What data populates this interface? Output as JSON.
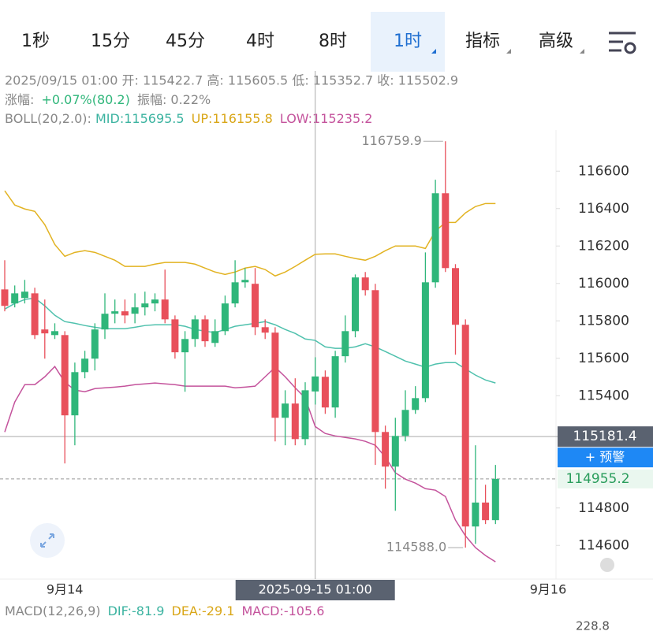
{
  "tabs": [
    "1秒",
    "15分",
    "45分",
    "4时",
    "8时",
    "1时",
    "指标",
    "高级"
  ],
  "selected_tab": 5,
  "info": {
    "line1": "2025/09/15 01:00 开: 115422.7 高: 115605.5 低: 115352.7 收: 115502.9",
    "change_label": "涨幅:",
    "change": "+0.07%(80.2)",
    "amplitude": "振幅:  0.22%",
    "boll_label": "BOLL(20,2.0):",
    "mid": "MID:115695.5",
    "up": "UP:116155.8",
    "low": "LOW:115235.2"
  },
  "chart_data": {
    "type": "candlestick",
    "categories": [
      null,
      null,
      null,
      null,
      null,
      null,
      "9月14",
      null,
      null,
      null,
      null,
      null,
      null,
      null,
      null,
      null,
      null,
      null,
      null,
      null,
      null,
      null,
      null,
      null,
      null,
      null,
      null,
      null,
      null,
      null,
      null,
      "2025-09-15 01:00",
      null,
      null,
      null,
      null,
      null,
      null,
      null,
      null,
      null,
      null,
      null,
      null,
      null,
      null,
      null,
      null,
      null,
      null
    ],
    "end_label": "9月16",
    "open": [
      115968,
      115893,
      115922,
      115947,
      115754,
      115724,
      115724,
      115295,
      115526,
      115598,
      115754,
      115838,
      115851,
      115838,
      115872,
      115893,
      115914,
      115808,
      115632,
      115703,
      115808,
      115682,
      115745,
      115893,
      116006,
      115998,
      115766,
      115737,
      115282,
      115358,
      115168,
      115422.7,
      115501,
      115337,
      115611,
      115745,
      116032,
      115964,
      115206,
      115021,
      115185,
      115324,
      115387,
      116006,
      116482,
      116082,
      115779,
      114701,
      114829,
      114735
    ],
    "high": [
      116124,
      115989,
      116019,
      115977,
      115914,
      115787,
      115745,
      115577,
      115640,
      115787,
      115947,
      115914,
      115914,
      115947,
      115956,
      115947,
      116074,
      115829,
      115745,
      115829,
      115829,
      115808,
      115935,
      116124,
      116082,
      116082,
      115808,
      115766,
      115429,
      115493,
      115472,
      115605.5,
      115535,
      115640,
      115829,
      116048,
      116061,
      115998,
      115240,
      115282,
      115429,
      115451,
      116166,
      116554,
      116759.9,
      116103,
      115808,
      115135,
      114924,
      115030
    ],
    "low": [
      115851,
      115872,
      115893,
      115703,
      115598,
      115703,
      115038,
      115135,
      115493,
      115535,
      115703,
      115787,
      115787,
      115787,
      115829,
      115851,
      115787,
      115598,
      115421,
      115661,
      115661,
      115661,
      115724,
      115872,
      115977,
      115724,
      115703,
      115156,
      115135,
      115135,
      115135,
      115352.7,
      115303,
      115282,
      115577,
      115712,
      115935,
      115030,
      114903,
      114785,
      115156,
      115303,
      115366,
      115977,
      116061,
      115619,
      114588.0,
      114608,
      114714,
      114714
    ],
    "close": [
      115880,
      115947,
      115956,
      115724,
      115733,
      115745,
      115295,
      115526,
      115598,
      115754,
      115838,
      115851,
      115829,
      115872,
      115893,
      115914,
      115808,
      115632,
      115703,
      115808,
      115691,
      115745,
      115893,
      116006,
      116019,
      115766,
      115737,
      115282,
      115358,
      115168,
      115429,
      115502.9,
      115337,
      115611,
      115745,
      116032,
      115964,
      115206,
      115021,
      115185,
      115324,
      115387,
      116006,
      116482,
      116082,
      115779,
      114701,
      114829,
      114735,
      114955.2
    ],
    "up_color": "#2fb67a",
    "down_color": "#e8505b",
    "bands": [
      {
        "color": "#e2b322",
        "values": [
          116495,
          116419,
          116398,
          116385,
          116314,
          116208,
          116145,
          116166,
          116175,
          116166,
          116145,
          116124,
          116091,
          116091,
          116091,
          116103,
          116112,
          116112,
          116112,
          116103,
          116082,
          116061,
          116048,
          116061,
          116082,
          116091,
          116074,
          116040,
          116061,
          116091,
          116124,
          116155.8,
          116158,
          116158,
          116145,
          116133,
          116124,
          116145,
          116175,
          116200,
          116200,
          116200,
          116187,
          116280,
          116326,
          116326,
          116377,
          116411,
          116427,
          116427
        ]
      },
      {
        "color": "#4fc1ad",
        "values": [
          115863,
          115893,
          115914,
          115922,
          115880,
          115830,
          115796,
          115787,
          115775,
          115766,
          115758,
          115758,
          115758,
          115766,
          115775,
          115779,
          115779,
          115779,
          115771,
          115754,
          115745,
          115737,
          115754,
          115771,
          115779,
          115787,
          115796,
          115779,
          115754,
          115733,
          115703,
          115695.5,
          115661,
          115653,
          115653,
          115661,
          115678,
          115661,
          115636,
          115611,
          115585,
          115569,
          115552,
          115569,
          115577,
          115577,
          115543,
          115510,
          115484,
          115468
        ]
      },
      {
        "color": "#c4539c",
        "values": [
          115206,
          115366,
          115459,
          115459,
          115501,
          115556,
          115472,
          115430,
          115421,
          115438,
          115442,
          115446,
          115451,
          115459,
          115463,
          115468,
          115463,
          115459,
          115451,
          115451,
          115451,
          115451,
          115451,
          115442,
          115446,
          115451,
          115501,
          115552,
          115501,
          115442,
          115388,
          115235.2,
          115198,
          115185,
          115177,
          115169,
          115156,
          115135,
          115072,
          114988,
          114954,
          114933,
          114903,
          114895,
          114861,
          114735,
          114651,
          114588,
          114546,
          114512
        ]
      }
    ],
    "ylim": [
      114420,
      116820
    ],
    "yticks": [
      114600,
      114800,
      115400,
      115600,
      115800,
      116000,
      116200,
      116400,
      116600
    ],
    "max_label": 116759.9,
    "min_label": {
      "value": 114588,
      "label": "114588.0"
    },
    "crosshair_value": 115181.4,
    "last_price": 114955.2,
    "alert_label": "+ 预警",
    "macd_label": "MACD(12,26,9)",
    "dif": "DIF:-81.9",
    "dea": "DEA:-29.1",
    "macd": "MACD:-105.6",
    "macd_axis": "228.8"
  }
}
